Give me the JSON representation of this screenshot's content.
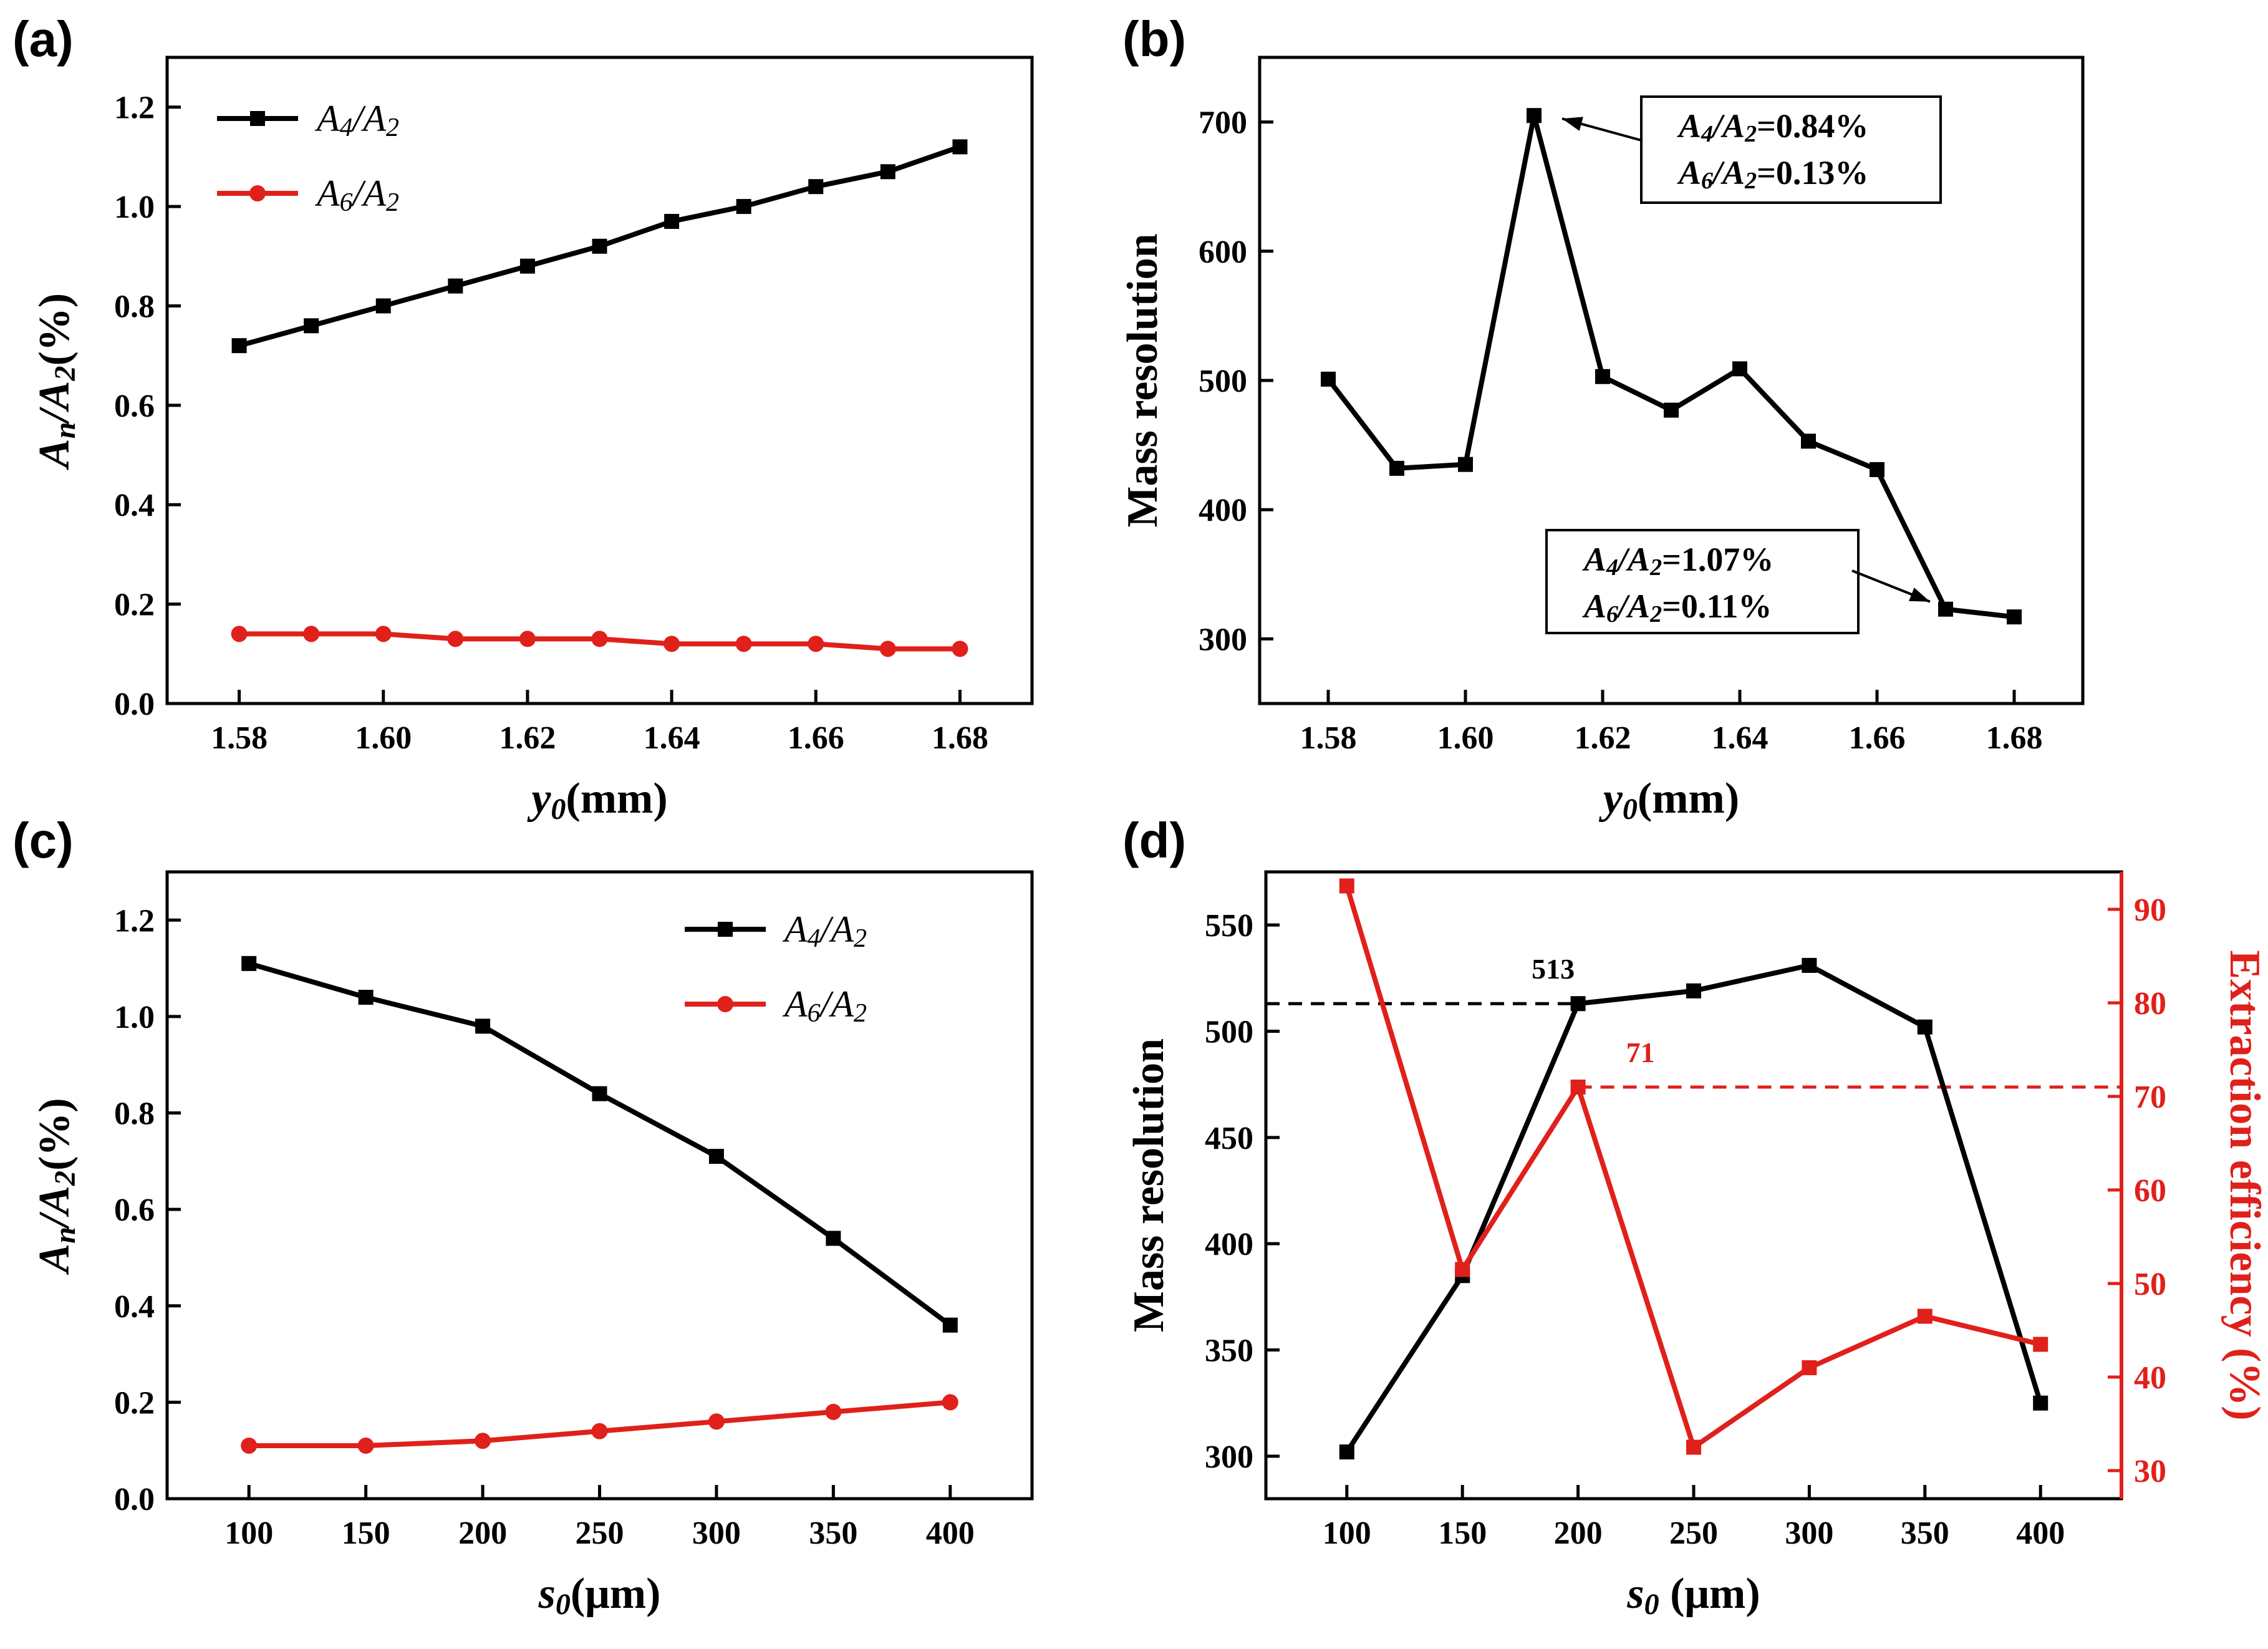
{
  "colors": {
    "black_series": "#000000",
    "red_series": "#e0201b",
    "axis": "#000000"
  },
  "chart_data": [
    {
      "panel": "(a)",
      "type": "line",
      "xlabel": "y0(mm)",
      "xlabel_parts": {
        "var": "y",
        "sub": "0",
        "unit": "(mm)"
      },
      "ylabel": "An/A2(%)",
      "ylabel_parts": {
        "a": "A",
        "a_sub": "n",
        "slash": "/",
        "b": "A",
        "b_sub": "2",
        "unit": "(%)"
      },
      "xlim": [
        1.57,
        1.69
      ],
      "ylim": [
        0.0,
        1.3
      ],
      "xticks": [
        1.58,
        1.6,
        1.62,
        1.64,
        1.66,
        1.68
      ],
      "xtick_labels": [
        "1.58",
        "1.60",
        "1.62",
        "1.64",
        "1.66",
        "1.68"
      ],
      "yticks": [
        0.0,
        0.2,
        0.4,
        0.6,
        0.8,
        1.0,
        1.2
      ],
      "ytick_labels": [
        "0.0",
        "0.2",
        "0.4",
        "0.6",
        "0.8",
        "1.0",
        "1.2"
      ],
      "legend_position": "top-left",
      "x": [
        1.58,
        1.59,
        1.6,
        1.61,
        1.62,
        1.63,
        1.64,
        1.65,
        1.66,
        1.67,
        1.68
      ],
      "series": [
        {
          "name": "A4/A2",
          "legend": {
            "a": "A",
            "a_sub": "4",
            "b": "A",
            "b_sub": "2"
          },
          "color": "#000000",
          "marker": "square",
          "values": [
            0.72,
            0.76,
            0.8,
            0.84,
            0.88,
            0.92,
            0.97,
            1.0,
            1.04,
            1.07,
            1.12
          ]
        },
        {
          "name": "A6/A2",
          "legend": {
            "a": "A",
            "a_sub": "6",
            "b": "A",
            "b_sub": "2"
          },
          "color": "#e0201b",
          "marker": "circle",
          "values": [
            0.14,
            0.14,
            0.14,
            0.13,
            0.13,
            0.13,
            0.12,
            0.12,
            0.12,
            0.11,
            0.11
          ]
        }
      ]
    },
    {
      "panel": "(b)",
      "type": "line",
      "xlabel": "y0(mm)",
      "xlabel_parts": {
        "var": "y",
        "sub": "0",
        "unit": "(mm)"
      },
      "ylabel": "Mass resolution",
      "xlim": [
        1.57,
        1.69
      ],
      "ylim": [
        250,
        750
      ],
      "xticks": [
        1.58,
        1.6,
        1.62,
        1.64,
        1.66,
        1.68
      ],
      "xtick_labels": [
        "1.58",
        "1.60",
        "1.62",
        "1.64",
        "1.66",
        "1.68"
      ],
      "yticks": [
        300,
        400,
        500,
        600,
        700
      ],
      "ytick_labels": [
        "300",
        "400",
        "500",
        "600",
        "700"
      ],
      "x": [
        1.58,
        1.59,
        1.6,
        1.61,
        1.62,
        1.63,
        1.64,
        1.65,
        1.66,
        1.67,
        1.68
      ],
      "series": [
        {
          "color": "#000000",
          "marker": "square",
          "values": [
            501,
            432,
            435,
            705,
            503,
            477,
            509,
            453,
            431,
            323,
            317
          ]
        }
      ],
      "annotations": [
        {
          "line1": {
            "a": "A",
            "a_sub": "4",
            "b": "A",
            "b_sub": "2",
            "val": "=0.84%"
          },
          "line2": {
            "a": "A",
            "a_sub": "6",
            "b": "A",
            "b_sub": "2",
            "val": "=0.13%"
          },
          "points_to": {
            "x": 1.61,
            "y": 705
          }
        },
        {
          "line1": {
            "a": "A",
            "a_sub": "4",
            "b": "A",
            "b_sub": "2",
            "val": "=1.07%"
          },
          "line2": {
            "a": "A",
            "a_sub": "6",
            "b": "A",
            "b_sub": "2",
            "val": "=0.11%"
          },
          "points_to": {
            "x": 1.67,
            "y": 323
          }
        }
      ]
    },
    {
      "panel": "(c)",
      "type": "line",
      "xlabel": "s0(μm)",
      "xlabel_parts": {
        "var": "s",
        "sub": "0",
        "unit": "(μm)"
      },
      "ylabel": "An/A2(%)",
      "ylabel_parts": {
        "a": "A",
        "a_sub": "n",
        "slash": "/",
        "b": "A",
        "b_sub": "2",
        "unit": "(%)"
      },
      "xlim": [
        65,
        435
      ],
      "ylim": [
        0.0,
        1.3
      ],
      "xticks": [
        100,
        150,
        200,
        250,
        300,
        350,
        400
      ],
      "xtick_labels": [
        "100",
        "150",
        "200",
        "250",
        "300",
        "350",
        "400"
      ],
      "yticks": [
        0.0,
        0.2,
        0.4,
        0.6,
        0.8,
        1.0,
        1.2
      ],
      "ytick_labels": [
        "0.0",
        "0.2",
        "0.4",
        "0.6",
        "0.8",
        "1.0",
        "1.2"
      ],
      "legend_position": "top-right",
      "x": [
        100,
        150,
        200,
        250,
        300,
        350,
        400
      ],
      "series": [
        {
          "name": "A4/A2",
          "legend": {
            "a": "A",
            "a_sub": "4",
            "b": "A",
            "b_sub": "2"
          },
          "color": "#000000",
          "marker": "square",
          "values": [
            1.11,
            1.04,
            0.98,
            0.84,
            0.71,
            0.54,
            0.36
          ]
        },
        {
          "name": "A6/A2",
          "legend": {
            "a": "A",
            "a_sub": "6",
            "b": "A",
            "b_sub": "2"
          },
          "color": "#e0201b",
          "marker": "circle",
          "values": [
            0.11,
            0.11,
            0.12,
            0.14,
            0.16,
            0.18,
            0.2
          ]
        }
      ]
    },
    {
      "panel": "(d)",
      "type": "line",
      "xlabel": "s0 (μm)",
      "xlabel_parts": {
        "var": "s",
        "sub": "0",
        "unit": " (μm)"
      },
      "ylabel": "Mass resolution",
      "ylabel_right": "Extraction efficiency (%)",
      "xlim": [
        65,
        435
      ],
      "ylim": [
        280,
        575
      ],
      "ylim_right": [
        27,
        94
      ],
      "xticks": [
        100,
        150,
        200,
        250,
        300,
        350,
        400
      ],
      "xtick_labels": [
        "100",
        "150",
        "200",
        "250",
        "300",
        "350",
        "400"
      ],
      "yticks": [
        300,
        350,
        400,
        450,
        500,
        550
      ],
      "ytick_labels": [
        "300",
        "350",
        "400",
        "450",
        "500",
        "550"
      ],
      "yticks_right": [
        30,
        40,
        50,
        60,
        70,
        80,
        90
      ],
      "ytick_labels_right": [
        "30",
        "40",
        "50",
        "60",
        "70",
        "80",
        "90"
      ],
      "x": [
        100,
        150,
        200,
        250,
        300,
        350,
        400
      ],
      "series": [
        {
          "axis": "left",
          "color": "#000000",
          "marker": "square",
          "values": [
            302,
            385,
            513,
            519,
            531,
            502,
            325
          ]
        },
        {
          "axis": "right",
          "color": "#e0201b",
          "marker": "square",
          "values": [
            92.5,
            51.5,
            71.0,
            32.5,
            41.0,
            46.5,
            43.5
          ]
        }
      ],
      "reference_lines": [
        {
          "axis": "left",
          "y": 513,
          "from_x": 65,
          "to_x": 200,
          "style": "dashed",
          "color": "#000000",
          "label": "513"
        },
        {
          "axis": "right",
          "y": 71,
          "from_x": 200,
          "to_x": 435,
          "style": "dashed",
          "color": "#e0201b",
          "label": "71"
        }
      ]
    }
  ]
}
